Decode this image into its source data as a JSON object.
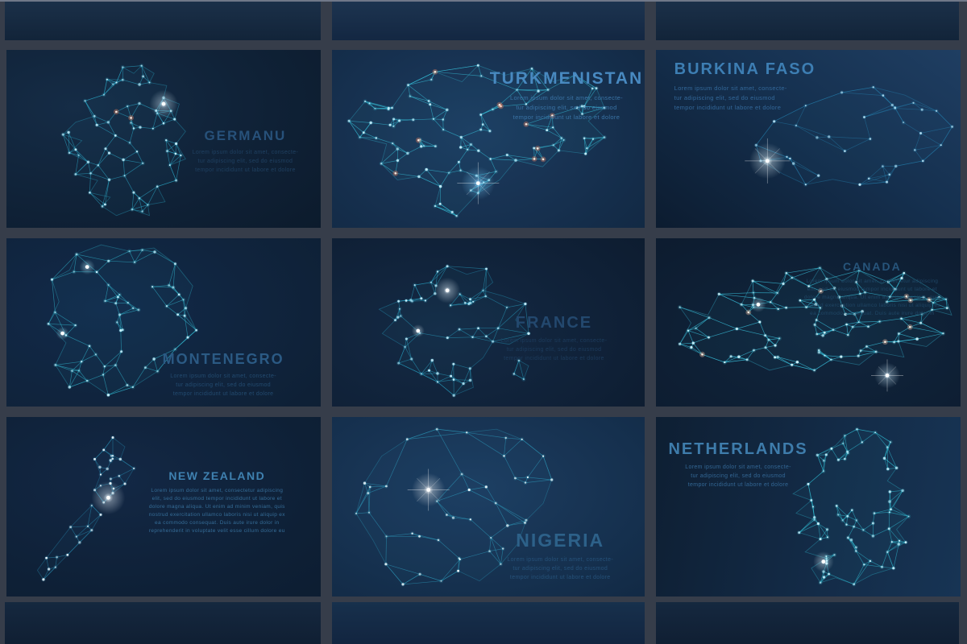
{
  "page": {
    "background": "#363d4a",
    "frame_line": "#707889"
  },
  "lorem_short": "Lorem ipsum dolor sit amet, consecte-\ntur adipiscing elit, sed do eiusmod\ntempor incididunt ut labore et dolore",
  "panels": [
    {
      "id": "germany",
      "title": "GERMANU",
      "description": "Lorem ipsum dolor sit amet, consecte-\ntur adipiscing elit, sed do eiusmod\ntempor incididunt ut labore et dolore",
      "title_color": "#27517a",
      "desc_color": "#1f4061",
      "map": {
        "mesh_color": "#2fb9da",
        "node_color": "#c9f1ff",
        "warm_color": "#ff8a62",
        "glow_color": "#dff2ff"
      }
    },
    {
      "id": "turkmenistan",
      "title": "TURKMENISTAN",
      "description": "Lorem ipsum dolor sit amet, consecte-\ntur adipiscing elit, sed do eiusmod\ntempor incididunt ut labore et dolore",
      "title_color": "#4889c0",
      "desc_color": "#3a74a6",
      "map": {
        "mesh_color": "#37c4de",
        "node_color": "#c9f1ff",
        "warm_color": "#ff8a62",
        "glow_color": "#7fd0ff"
      }
    },
    {
      "id": "burkina-faso",
      "title": "BURKINA FASO",
      "description": "Lorem ipsum dolor sit amet, consecte-\ntur adipiscing elit, sed do eiusmod\ntempor incididunt ut labore et dolore",
      "title_color": "#3d7eb3",
      "desc_color": "#33689a",
      "map": {
        "mesh_color": "#2792c2",
        "node_color": "#bfe9fb",
        "glow_color": "#eafaff"
      }
    },
    {
      "id": "montenegro",
      "title": "MONTENEGRO",
      "description": "Lorem ipsum dolor sit amet, consecte-\ntur adipiscing elit, sed do eiusmod\ntempor incididunt ut labore et dolore",
      "title_color": "#2b5a84",
      "desc_color": "#234b70",
      "map": {
        "mesh_color": "#35c6de",
        "node_color": "#c9f1ff",
        "glow_color": "#bfefff"
      }
    },
    {
      "id": "france",
      "title": "FRANCE",
      "description": "Lorem ipsum dolor sit amet, consecte-\ntur adipiscing elit, sed do eiusmod\ntempor incididunt ut labore et dolore",
      "title_color": "#23486e",
      "desc_color": "#1d3c5d",
      "map": {
        "mesh_color": "#2cb3d6",
        "node_color": "#c9f1ff",
        "glow_color": "#e8f6ff"
      }
    },
    {
      "id": "canada",
      "title": "CANADA",
      "description": "Lorem ipsum dolor sit amet, consectetur adipiscing\nelit, sed do eiusmod tempor incididunt ut labore et\ndolore magna aliqua. Ut enim ad minim veniam, quis\nnostrud exercitation ullamco laboris nisi ut aliquip ex\nea commodo consequat. Duis aute irure dolor in",
      "title_color": "#27557b",
      "desc_color": "#1f4665",
      "map": {
        "mesh_color": "#3ed2ee",
        "node_color": "#d4f6ff",
        "warm_color": "#ffc9a8",
        "glow_color": "#cfeeff"
      }
    },
    {
      "id": "new-zealand",
      "title": "NEW ZEALAND",
      "description": "Lorem ipsum dolor sit amet, consectetur adipiscing\nelit, sed do eiusmod tempor incididunt ut labore et\ndolore magna aliqua. Ut enim ad minim veniam, quis\nnostrud exercitation ullamco laboris nisi ut aliquip ex\nea commodo consequat. Duis aute irure dolor in\nreprehenderit in voluptate velit esse cillum dolore eu",
      "title_color": "#3f81b0",
      "desc_color": "#356d98",
      "map": {
        "mesh_color": "#2b9dc6",
        "node_color": "#eef9ff",
        "glow_color": "#eef8ff"
      }
    },
    {
      "id": "nigeria",
      "title": "NIGERIA",
      "description": "Lorem ipsum dolor sit amet, consecte-\ntur adipiscing elit, sed do eiusmod\ntempor incididunt ut labore et dolore",
      "title_color": "#2d6189",
      "desc_color": "#26527a",
      "map": {
        "mesh_color": "#2fa5c6",
        "node_color": "#f2fbff",
        "glow_color": "#ffffff"
      }
    },
    {
      "id": "netherlands",
      "title": "NETHERLANDS",
      "description": "Lorem ipsum dolor sit amet, consecte-\ntur adipiscing elit, sed do eiusmod\ntempor incididunt ut labore et dolore",
      "title_color": "#3e7cab",
      "desc_color": "#336795",
      "map": {
        "mesh_color": "#33cce2",
        "node_color": "#c9f1ff",
        "glow_color": "#dff6ff"
      }
    }
  ]
}
